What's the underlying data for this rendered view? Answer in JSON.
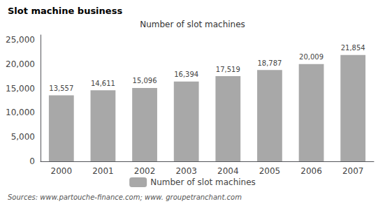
{
  "chart_data": {
    "type": "bar",
    "title": "Slot machine business",
    "subtitle": "Number of slot machines",
    "categories": [
      "2000",
      "2001",
      "2002",
      "2003",
      "2004",
      "2005",
      "2006",
      "2007"
    ],
    "series": [
      {
        "name": "Number of slot machines",
        "color": "#a8a8a8",
        "values": [
          13557,
          14611,
          15096,
          16394,
          17519,
          18787,
          20009,
          21854
        ],
        "value_labels": [
          "13,557",
          "14,611",
          "15,096",
          "16,394",
          "17,519",
          "18,787",
          "20,009",
          "21,854"
        ]
      }
    ],
    "ylim": [
      0,
      26000
    ],
    "yticks": [
      0,
      {
        "value": 5000,
        "label": "5,000"
      },
      {
        "value": 10000,
        "label": "10,000"
      },
      {
        "value": 15000,
        "label": "15,000"
      },
      {
        "value": 20000,
        "label": "20,000"
      },
      {
        "value": 25000,
        "label": "25,000"
      }
    ],
    "data_labels": true,
    "grid": false,
    "legend": "bottom",
    "source": "Sources: www.partouche-finance.com; www. groupetranchant.com"
  }
}
